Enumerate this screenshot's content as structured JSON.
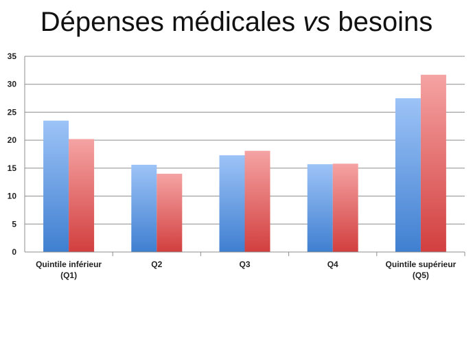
{
  "title": {
    "before": "Dépenses médicales ",
    "emphasis": "vs",
    "after": " besoins"
  },
  "chart_data": {
    "type": "bar",
    "categories": [
      [
        "Quintile inférieur",
        "(Q1)"
      ],
      [
        "Q2"
      ],
      [
        "Q3"
      ],
      [
        "Q4"
      ],
      [
        "Quintile supérieur",
        "(Q5)"
      ]
    ],
    "series": [
      {
        "values": [
          23.5,
          15.6,
          17.3,
          15.7,
          27.5
        ],
        "color_top": "#9dc3f7",
        "color_bottom": "#3f7fd0"
      },
      {
        "values": [
          20.2,
          14.0,
          18.1,
          15.8,
          31.7
        ],
        "color_top": "#f5a3a3",
        "color_bottom": "#d23f3f"
      }
    ],
    "ylim": [
      0,
      35
    ],
    "yticks": [
      0,
      5,
      10,
      15,
      20,
      25,
      30,
      35
    ],
    "grid": true,
    "legend": "none"
  }
}
